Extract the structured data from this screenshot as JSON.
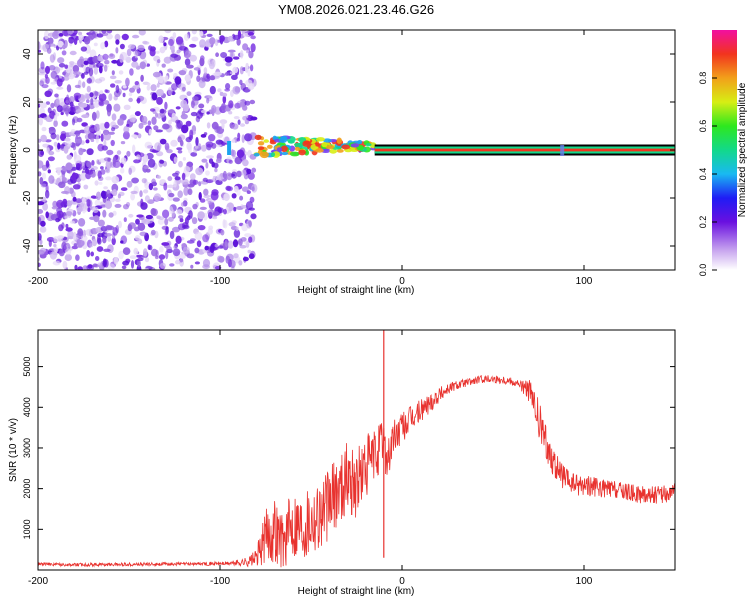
{
  "title": "YM08.2026.021.23.46.G26",
  "chart_data": [
    {
      "type": "heatmap",
      "panel": "spectrogram",
      "title": "YM08.2026.021.23.46.G26",
      "xlabel": "Height of straight line (km)",
      "ylabel": "Frequency (Hz)",
      "xlim": [
        -200,
        150
      ],
      "ylim": [
        -50,
        50
      ],
      "xticks": [
        -200,
        -100,
        0,
        100
      ],
      "yticks": [
        -40,
        -20,
        0,
        20,
        40
      ],
      "noise_region_km": [
        -200,
        -80
      ],
      "signal_band_hz": 0,
      "signal_start_km": -80,
      "secondary_feature_km": 88,
      "colorbar": {
        "label": "Normalized spectral amplitude",
        "range": [
          0.0,
          1.0
        ],
        "ticks": [
          "0.0",
          "0.2",
          "0.4",
          "0.6",
          "0.8"
        ]
      }
    },
    {
      "type": "line",
      "panel": "snr",
      "xlabel": "Height of straight line (km)",
      "ylabel": "SNR (10 * v/v)",
      "xlim": [
        -200,
        150
      ],
      "ylim": [
        0,
        5900
      ],
      "xticks": [
        -200,
        -100,
        0,
        100
      ],
      "yticks": [
        1000,
        2000,
        3000,
        4000,
        5000
      ],
      "series": [
        {
          "name": "SNR",
          "color": "#e8322e",
          "x": [
            -200,
            -180,
            -150,
            -120,
            -95,
            -85,
            -80,
            -75,
            -70,
            -65,
            -60,
            -55,
            -50,
            -45,
            -40,
            -35,
            -30,
            -25,
            -20,
            -15,
            -12,
            -10,
            -8,
            -5,
            0,
            5,
            10,
            15,
            20,
            25,
            30,
            35,
            40,
            45,
            50,
            55,
            60,
            65,
            70,
            75,
            80,
            85,
            90,
            95,
            100,
            110,
            120,
            130,
            140,
            150
          ],
          "y": [
            150,
            130,
            140,
            150,
            160,
            200,
            300,
            800,
            1000,
            700,
            1200,
            1100,
            1300,
            1400,
            1600,
            2000,
            2300,
            2100,
            2500,
            2800,
            3000,
            3200,
            2700,
            3200,
            3500,
            3700,
            3900,
            4100,
            4300,
            4450,
            4550,
            4600,
            4650,
            4700,
            4700,
            4680,
            4650,
            4550,
            4400,
            3700,
            3000,
            2500,
            2200,
            2100,
            2100,
            2000,
            1950,
            1850,
            1850,
            1900
          ],
          "jitter": [
            40,
            40,
            40,
            40,
            50,
            120,
            200,
            700,
            800,
            700,
            900,
            900,
            900,
            900,
            900,
            900,
            900,
            900,
            800,
            700,
            700,
            600,
            600,
            500,
            400,
            350,
            300,
            250,
            200,
            150,
            120,
            100,
            100,
            100,
            100,
            100,
            100,
            120,
            300,
            500,
            400,
            350,
            300,
            280,
            260,
            240,
            220,
            220,
            220,
            220
          ]
        }
      ],
      "spike": {
        "x": -10,
        "y": 5900,
        "dip_y": 300
      }
    }
  ]
}
